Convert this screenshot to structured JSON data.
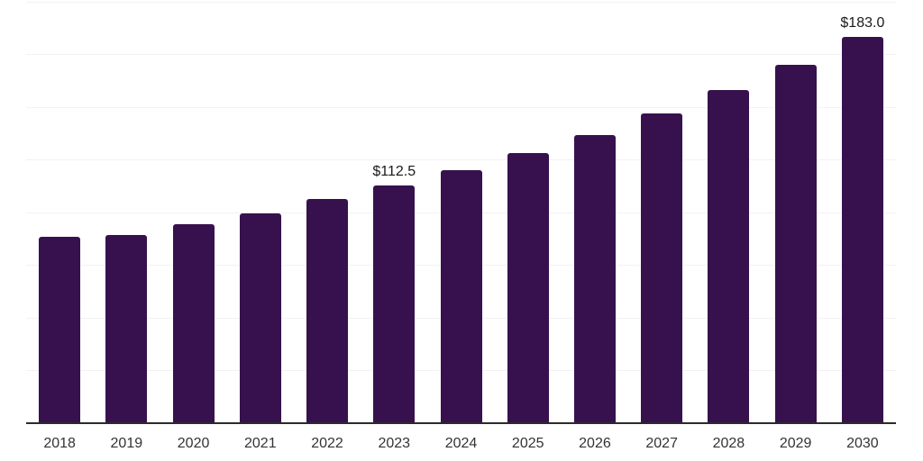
{
  "chart_data": {
    "type": "bar",
    "title": "",
    "xlabel": "",
    "ylabel": "",
    "categories": [
      "2018",
      "2019",
      "2020",
      "2021",
      "2022",
      "2023",
      "2024",
      "2025",
      "2026",
      "2027",
      "2028",
      "2029",
      "2030"
    ],
    "values": [
      88.2,
      89.4,
      94.5,
      99.5,
      106.2,
      112.5,
      120.1,
      128.0,
      136.6,
      146.9,
      157.9,
      169.9,
      183.0
    ],
    "bar_labels": [
      "",
      "",
      "",
      "",
      "",
      "$112.5",
      "",
      "",
      "",
      "",
      "",
      "",
      "$183.0"
    ],
    "ylim": [
      0,
      200
    ],
    "grid_step": 25,
    "grid": "horizontal-only",
    "legend": "none",
    "y_axis_labels_visible": false,
    "colors": {
      "bar": "#37114e",
      "gridline": "#f2f2f4",
      "axis": "#2b2b2b",
      "tick_label": "#333333",
      "value_label": "#1a1a1a",
      "background": "#ffffff"
    }
  }
}
